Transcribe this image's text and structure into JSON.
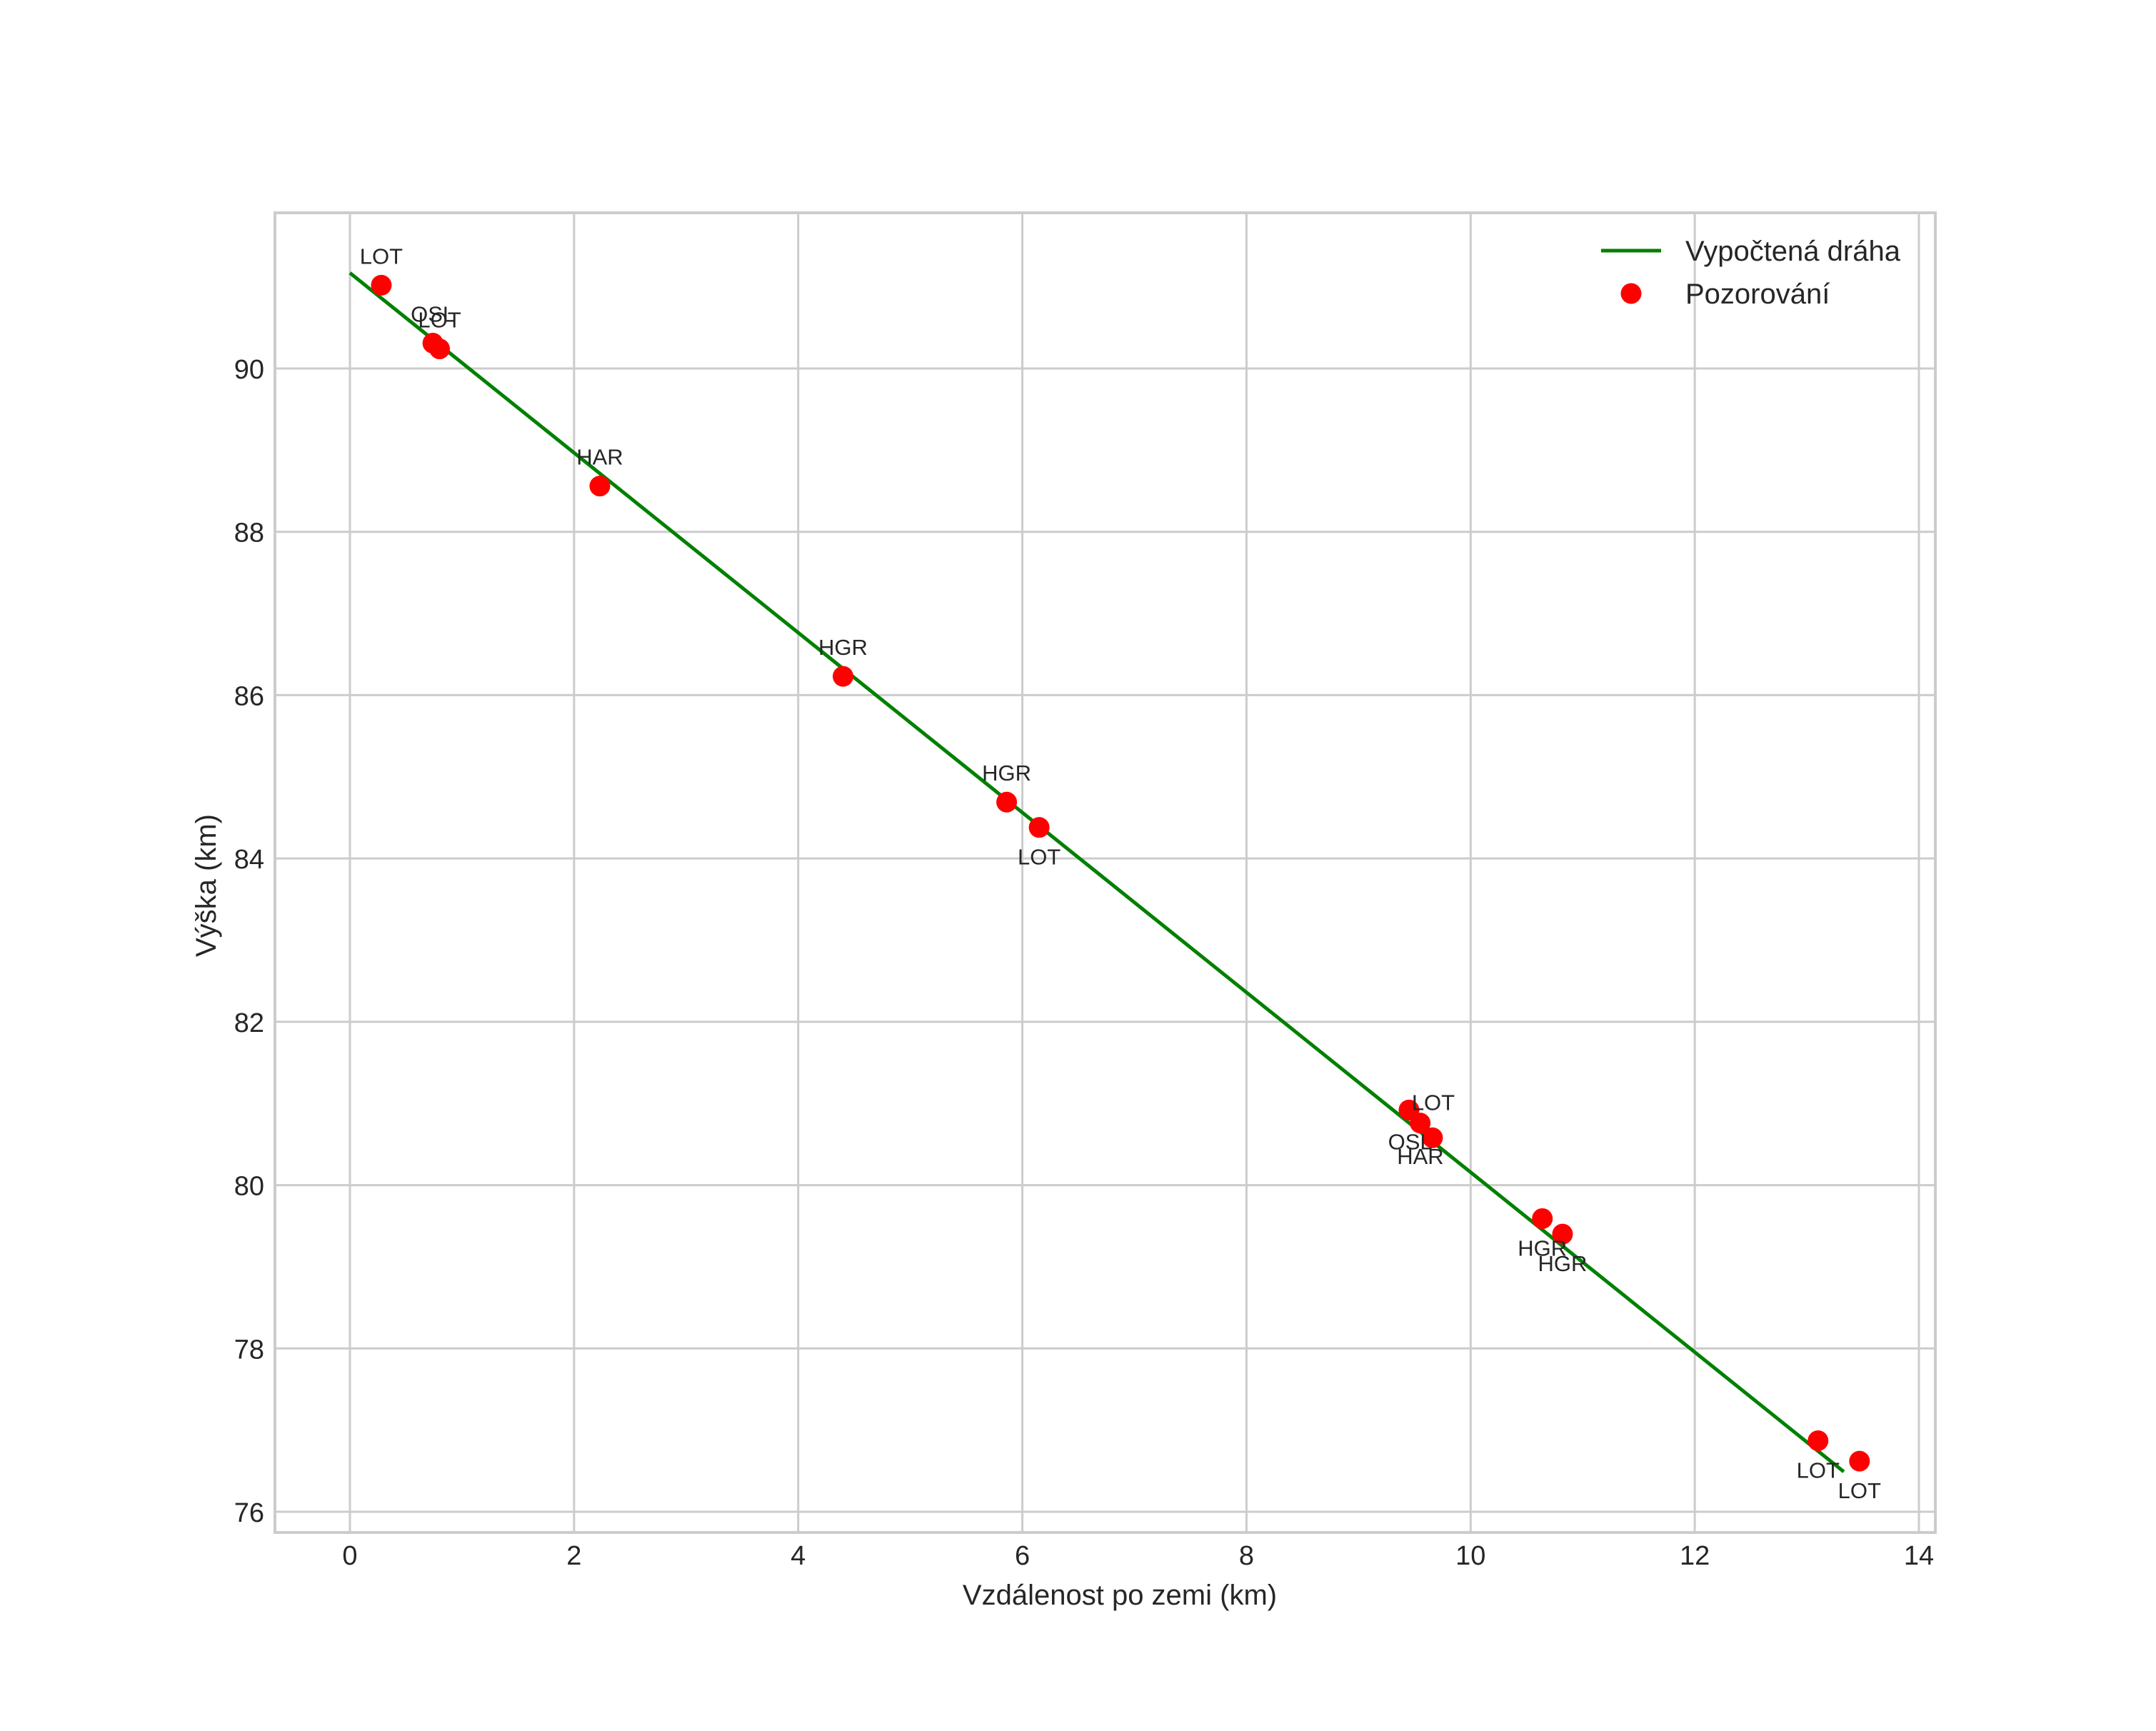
{
  "chart_data": {
    "type": "scatter",
    "title": "",
    "xlabel": "Vzdálenost po zemi (km)",
    "ylabel": "Výška (km)",
    "xlim": [
      -0.67,
      14.14
    ],
    "ylim": [
      75.75,
      91.92
    ],
    "xticks": [
      0,
      2,
      4,
      6,
      8,
      10,
      12,
      14
    ],
    "yticks": [
      76,
      78,
      80,
      82,
      84,
      86,
      88,
      90
    ],
    "grid": true,
    "legend_position": "upper right",
    "legend": [
      "Vypočtená dráha",
      "Pozorování"
    ],
    "series": [
      {
        "name": "Vypočtená dráha",
        "kind": "line",
        "color": "#008000",
        "x": [
          0.0,
          13.33
        ],
        "y": [
          91.17,
          76.49
        ]
      },
      {
        "name": "Pozorování",
        "kind": "scatter",
        "color": "#ff0000",
        "points": [
          {
            "x": 0.28,
            "y": 91.02,
            "label": "LOT",
            "label_pos": "above"
          },
          {
            "x": 0.74,
            "y": 90.31,
            "label": "OSL",
            "label_pos": "above"
          },
          {
            "x": 0.8,
            "y": 90.24,
            "label": "LOT",
            "label_pos": "above"
          },
          {
            "x": 2.23,
            "y": 88.56,
            "label": "HAR",
            "label_pos": "above"
          },
          {
            "x": 4.4,
            "y": 86.23,
            "label": "HGR",
            "label_pos": "above"
          },
          {
            "x": 5.86,
            "y": 84.69,
            "label": "HGR",
            "label_pos": "above"
          },
          {
            "x": 6.15,
            "y": 84.38,
            "label": "LOT",
            "label_pos": "below"
          },
          {
            "x": 9.45,
            "y": 80.92,
            "label": "LOT",
            "label_pos": "right"
          },
          {
            "x": 9.55,
            "y": 80.76,
            "label": "OSL",
            "label_pos": "belowleft"
          },
          {
            "x": 9.66,
            "y": 80.58,
            "label": "HAR",
            "label_pos": "belowleft"
          },
          {
            "x": 10.64,
            "y": 79.59,
            "label": "HGR",
            "label_pos": "below"
          },
          {
            "x": 10.82,
            "y": 79.4,
            "label": "HGR",
            "label_pos": "below"
          },
          {
            "x": 13.1,
            "y": 76.87,
            "label": "LOT",
            "label_pos": "below"
          },
          {
            "x": 13.47,
            "y": 76.62,
            "label": "LOT",
            "label_pos": "below"
          }
        ]
      }
    ]
  },
  "axes": {
    "xlabel": "Vzdálenost po zemi (km)",
    "ylabel": "Výška (km)"
  },
  "legend": {
    "items": [
      {
        "label": "Vypočtená dráha",
        "icon": "green-line",
        "color": "#008000"
      },
      {
        "label": "Pozorování",
        "icon": "red-dot",
        "color": "#ff0000"
      }
    ]
  },
  "colors": {
    "line": "#008000",
    "marker": "#ff0000",
    "grid": "#cccccc",
    "text": "#262626"
  }
}
